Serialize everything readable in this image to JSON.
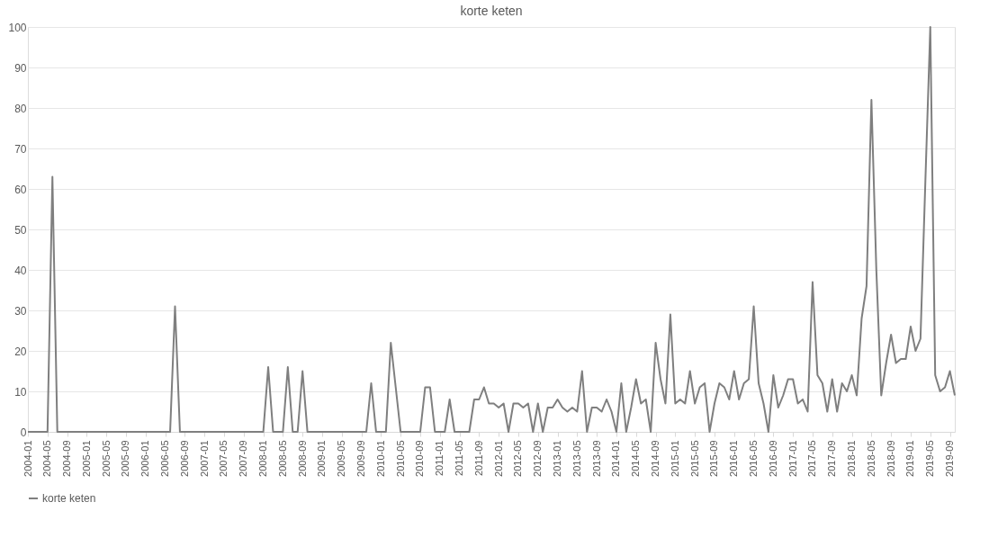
{
  "chart_data": {
    "type": "line",
    "title": "korte keten",
    "categories": [
      "2004-01",
      null,
      null,
      null,
      "2004-05",
      null,
      null,
      null,
      "2004-09",
      null,
      null,
      null,
      "2005-01",
      null,
      null,
      null,
      "2005-05",
      null,
      null,
      null,
      "2005-09",
      null,
      null,
      null,
      "2006-01",
      null,
      null,
      null,
      "2006-05",
      null,
      null,
      null,
      "2006-09",
      null,
      null,
      null,
      "2007-01",
      null,
      null,
      null,
      "2007-05",
      null,
      null,
      null,
      "2007-09",
      null,
      null,
      null,
      "2008-01",
      null,
      null,
      null,
      "2008-05",
      null,
      null,
      null,
      "2008-09",
      null,
      null,
      null,
      "2009-01",
      null,
      null,
      null,
      "2009-05",
      null,
      null,
      null,
      "2009-09",
      null,
      null,
      null,
      "2010-01",
      null,
      null,
      null,
      "2010-05",
      null,
      null,
      null,
      "2010-09",
      null,
      null,
      null,
      "2011-01",
      null,
      null,
      null,
      "2011-05",
      null,
      null,
      null,
      "2011-09",
      null,
      null,
      null,
      "2012-01",
      null,
      null,
      null,
      "2012-05",
      null,
      null,
      null,
      "2012-09",
      null,
      null,
      null,
      "2013-01",
      null,
      null,
      null,
      "2013-05",
      null,
      null,
      null,
      "2013-09",
      null,
      null,
      null,
      "2014-01",
      null,
      null,
      null,
      "2014-05",
      null,
      null,
      null,
      "2014-09",
      null,
      null,
      null,
      "2015-01",
      null,
      null,
      null,
      "2015-05",
      null,
      null,
      null,
      "2015-09",
      null,
      null,
      null,
      "2016-01",
      null,
      null,
      null,
      "2016-05",
      null,
      null,
      null,
      "2016-09",
      null,
      null,
      null,
      "2017-01",
      null,
      null,
      null,
      "2017-05",
      null,
      null,
      null,
      "2017-09",
      null,
      null,
      null,
      "2018-01",
      null,
      null,
      null,
      "2018-05",
      null,
      null,
      null,
      "2018-09",
      null,
      null,
      null,
      "2019-01",
      null,
      null,
      null,
      "2019-05",
      null,
      null,
      null,
      "2019-09",
      null
    ],
    "series": [
      {
        "name": "korte keten",
        "color": "#7f7f7f",
        "values": [
          0,
          0,
          0,
          0,
          0,
          63,
          0,
          0,
          0,
          0,
          0,
          0,
          0,
          0,
          0,
          0,
          0,
          0,
          0,
          0,
          0,
          0,
          0,
          0,
          0,
          0,
          0,
          0,
          0,
          0,
          31,
          0,
          0,
          0,
          0,
          0,
          0,
          0,
          0,
          0,
          0,
          0,
          0,
          0,
          0,
          0,
          0,
          0,
          0,
          16,
          0,
          0,
          0,
          16,
          0,
          0,
          15,
          0,
          0,
          0,
          0,
          0,
          0,
          0,
          0,
          0,
          0,
          0,
          0,
          0,
          12,
          0,
          0,
          0,
          22,
          11,
          0,
          0,
          0,
          0,
          0,
          11,
          11,
          0,
          0,
          0,
          8,
          0,
          0,
          0,
          0,
          8,
          8,
          11,
          7,
          7,
          6,
          7,
          0,
          7,
          7,
          6,
          7,
          0,
          7,
          0,
          6,
          6,
          8,
          6,
          5,
          6,
          5,
          15,
          0,
          6,
          6,
          5,
          8,
          5,
          0,
          12,
          0,
          6,
          13,
          7,
          8,
          0,
          22,
          13,
          7,
          29,
          7,
          8,
          7,
          15,
          7,
          11,
          12,
          0,
          7,
          12,
          11,
          8,
          15,
          8,
          12,
          13,
          31,
          12,
          7,
          0,
          14,
          6,
          9,
          13,
          13,
          7,
          8,
          5,
          37,
          14,
          12,
          5,
          13,
          5,
          12,
          10,
          14,
          9,
          28,
          36,
          82,
          40,
          9,
          17,
          24,
          17,
          18,
          18,
          26,
          20,
          23,
          62,
          100,
          14,
          10,
          11,
          15,
          9
        ]
      }
    ],
    "ylim": [
      0,
      100
    ],
    "yticks": [
      0,
      10,
      20,
      30,
      40,
      50,
      60,
      70,
      80,
      90,
      100
    ],
    "grid": "y",
    "legend": "bottom",
    "marker": "none",
    "line_style": "solid"
  }
}
